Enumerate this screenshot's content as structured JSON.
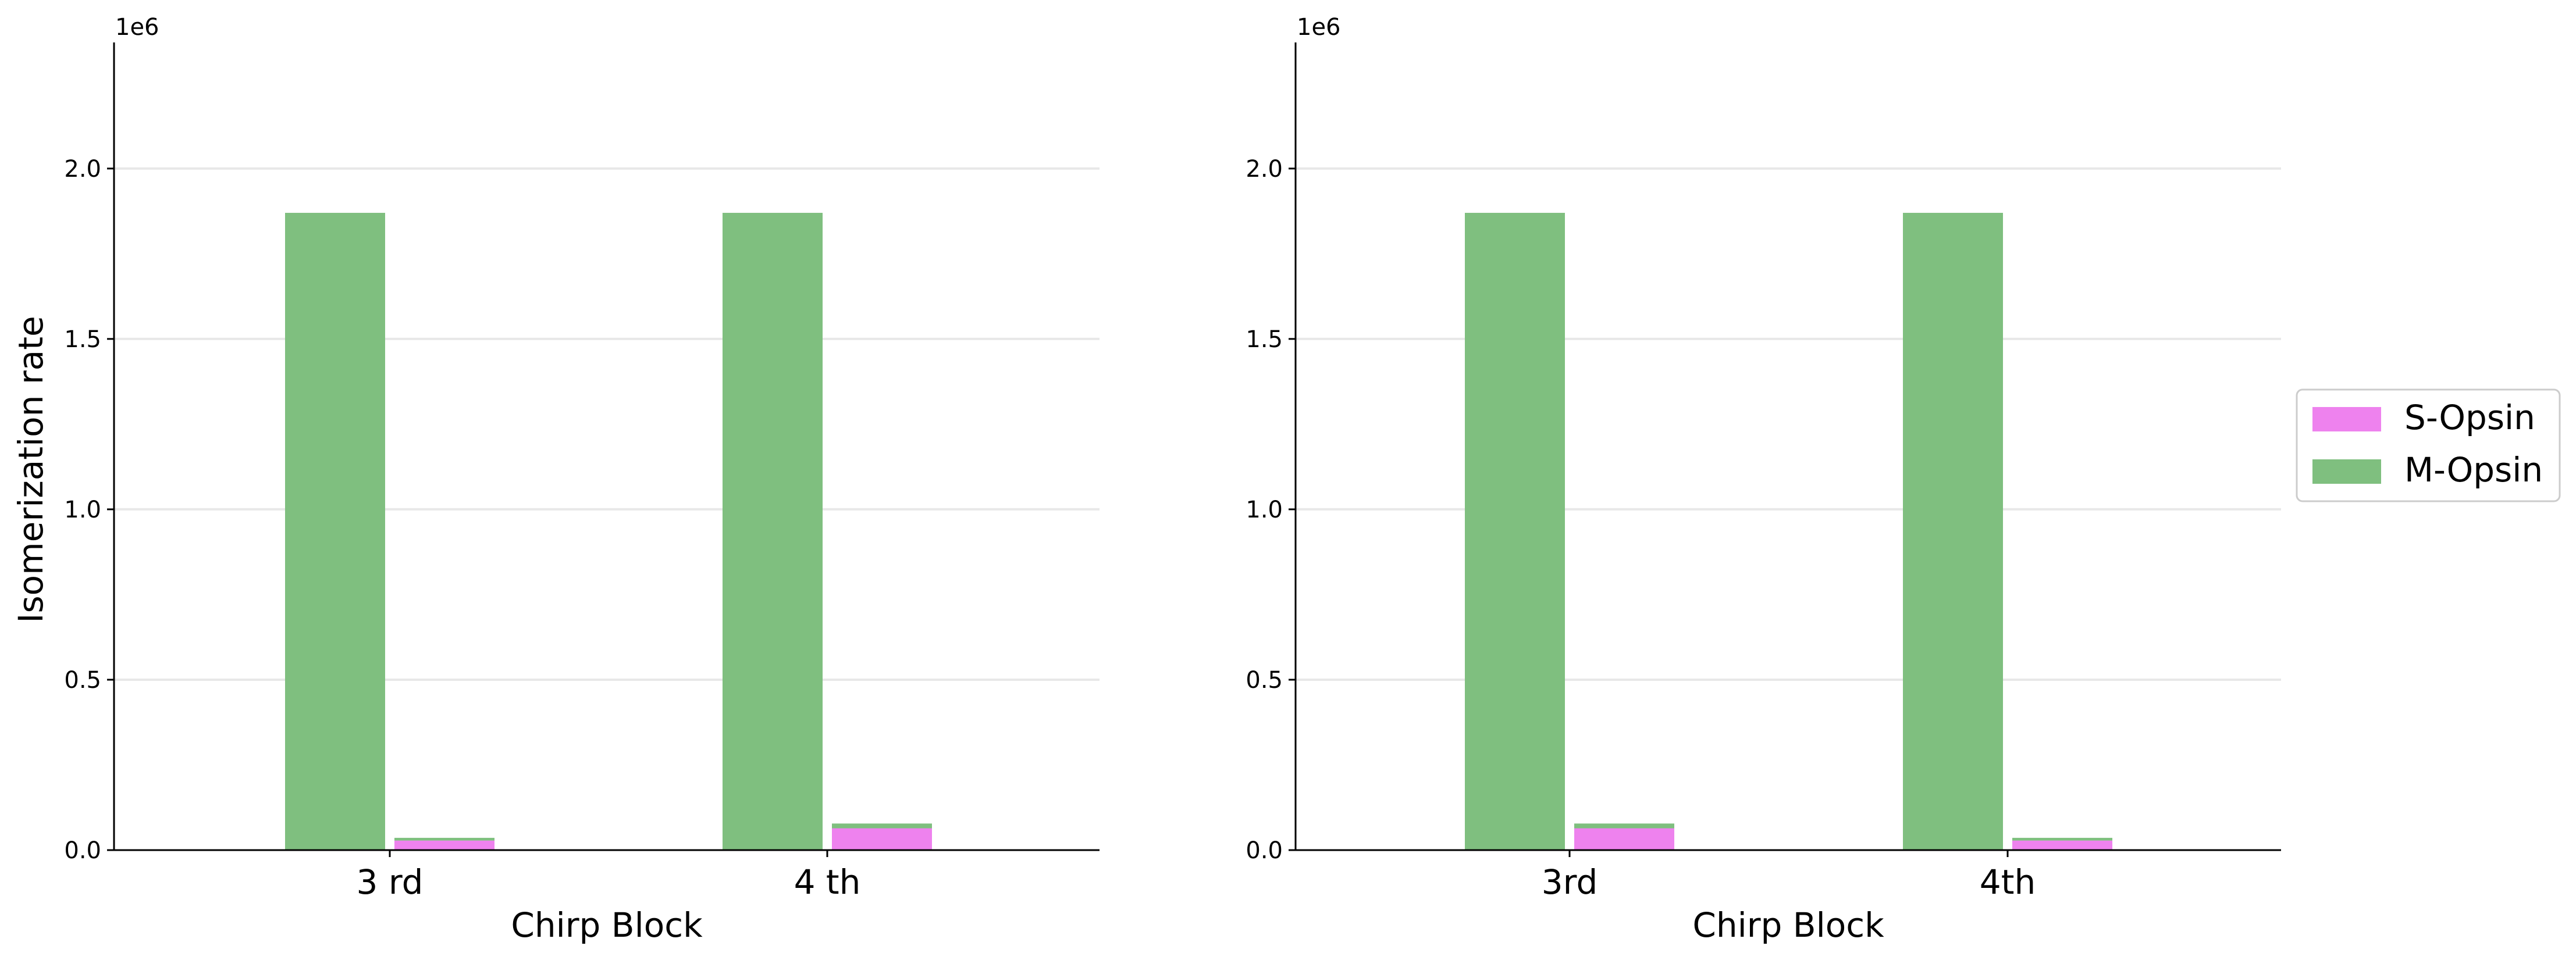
{
  "figure": {
    "legend": {
      "placement": "right-center",
      "entries": [
        {
          "label": "S-Opsin",
          "color": "#EE82EE"
        },
        {
          "label": "M-Opsin",
          "color": "#7FBF7F"
        }
      ]
    }
  },
  "chart_data": [
    {
      "type": "bar",
      "categories": [
        "3 rd",
        "4 th"
      ],
      "series": [
        {
          "name": "M-Opsin",
          "values": [
            1870000,
            1870000
          ],
          "color": "#7FBF7F"
        },
        {
          "name": "S-Opsin",
          "values": [
            28000,
            64000
          ],
          "color": "#EE82EE"
        },
        {
          "name": "M-Opsin",
          "values": [
            8000,
            14000
          ],
          "color": "#7FBF7F"
        }
      ],
      "xlabel": "Chirp Block",
      "ylabel": "Isomerization rate",
      "y_offset_label": "1e6",
      "yticks": [
        0,
        500000,
        1000000,
        1500000,
        2000000
      ],
      "ytick_labels": [
        "0.0",
        "0.5",
        "1.0",
        "1.5",
        "2.0"
      ],
      "ylim": [
        0,
        2370000
      ],
      "grid": "horizontal"
    },
    {
      "type": "bar",
      "categories": [
        "3rd",
        "4th"
      ],
      "series": [
        {
          "name": "M-Opsin",
          "values": [
            1870000,
            1870000
          ],
          "color": "#7FBF7F"
        },
        {
          "name": "S-Opsin",
          "values": [
            64000,
            28000
          ],
          "color": "#EE82EE"
        },
        {
          "name": "M-Opsin",
          "values": [
            14000,
            8000
          ],
          "color": "#7FBF7F"
        }
      ],
      "xlabel": "Chirp Block",
      "ylabel": "",
      "y_offset_label": "1e6",
      "yticks": [
        0,
        500000,
        1000000,
        1500000,
        2000000
      ],
      "ytick_labels": [
        "0.0",
        "0.5",
        "1.0",
        "1.5",
        "2.0"
      ],
      "ylim": [
        0,
        2370000
      ],
      "grid": "horizontal"
    }
  ]
}
